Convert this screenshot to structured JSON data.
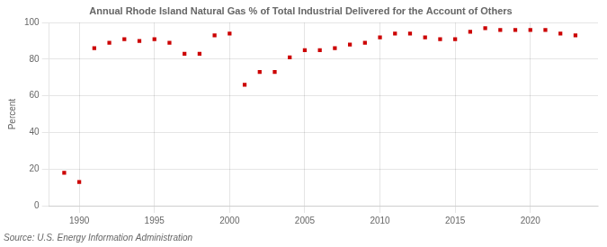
{
  "chart_data": {
    "type": "scatter",
    "title": "Annual Rhode Island Natural Gas % of Total Industrial Delivered for the Account of Others",
    "ylabel": "Percent",
    "annotations": [
      "Source: U.S. Energy Information Administration"
    ],
    "x": [
      1989,
      1990,
      1991,
      1992,
      1993,
      1994,
      1995,
      1996,
      1997,
      1998,
      1999,
      2000,
      2001,
      2002,
      2003,
      2004,
      2005,
      2006,
      2007,
      2008,
      2009,
      2010,
      2011,
      2012,
      2013,
      2014,
      2015,
      2016,
      2017,
      2018,
      2019,
      2020,
      2021,
      2022,
      2023
    ],
    "values": [
      18,
      13,
      86,
      89,
      91,
      90,
      91,
      89,
      83,
      83,
      93,
      94,
      66,
      73,
      73,
      81,
      85,
      85,
      86,
      88,
      89,
      92,
      94,
      94,
      92,
      91,
      91,
      95,
      97,
      96,
      96,
      96,
      96,
      94,
      93
    ],
    "color": "#cc0000",
    "marker": "square",
    "xlim": [
      1988,
      2024.5
    ],
    "ylim": [
      0,
      100
    ],
    "xticks": [
      1990,
      1995,
      2000,
      2005,
      2010,
      2015,
      2020
    ],
    "yticks": [
      0,
      20,
      40,
      60,
      80,
      100
    ],
    "grid": true
  }
}
